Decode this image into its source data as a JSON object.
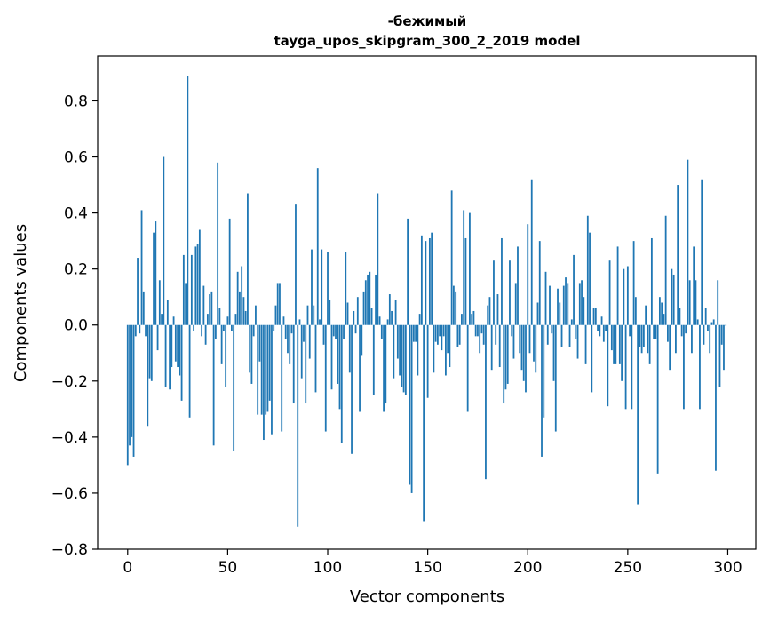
{
  "chart_data": {
    "type": "bar",
    "title": "-бежимый",
    "subtitle": "tayga_upos_skipgram_300_2_2019 model",
    "xlabel": "Vector components",
    "ylabel": "Components values",
    "xlim": [
      -15,
      314
    ],
    "ylim": [
      -0.8,
      0.96
    ],
    "xticks": [
      0,
      50,
      100,
      150,
      200,
      250,
      300
    ],
    "yticks": [
      -0.8,
      -0.6,
      -0.4,
      -0.2,
      0.0,
      0.2,
      0.4,
      0.6,
      0.8
    ],
    "ytick_labels": [
      "−0.8",
      "−0.6",
      "−0.4",
      "−0.2",
      "0.0",
      "0.2",
      "0.4",
      "0.6",
      "0.8"
    ],
    "bar_color": "#1f77b4",
    "grid": false,
    "x": "0..299 (component index)",
    "values": [
      -0.5,
      -0.43,
      -0.4,
      -0.47,
      -0.04,
      0.24,
      -0.03,
      0.41,
      0.12,
      -0.04,
      -0.36,
      -0.19,
      -0.2,
      0.33,
      0.37,
      -0.09,
      0.16,
      0.04,
      0.6,
      -0.22,
      0.09,
      -0.23,
      -0.15,
      0.03,
      -0.13,
      -0.15,
      -0.18,
      -0.27,
      0.25,
      0.15,
      0.89,
      -0.33,
      0.25,
      -0.02,
      0.28,
      0.29,
      0.34,
      -0.04,
      0.14,
      -0.07,
      0.04,
      0.11,
      0.12,
      -0.43,
      -0.05,
      0.58,
      0.06,
      -0.14,
      -0.02,
      -0.22,
      0.03,
      0.38,
      -0.02,
      -0.45,
      0.04,
      0.19,
      0.12,
      0.21,
      0.1,
      0.05,
      0.47,
      -0.17,
      -0.21,
      -0.04,
      0.07,
      -0.32,
      -0.13,
      -0.32,
      -0.41,
      -0.32,
      -0.31,
      -0.27,
      -0.39,
      -0.02,
      0.07,
      0.15,
      0.15,
      -0.38,
      0.03,
      -0.05,
      -0.1,
      -0.14,
      -0.03,
      -0.28,
      0.43,
      -0.72,
      0.02,
      -0.19,
      -0.06,
      -0.28,
      0.07,
      -0.12,
      0.27,
      0.07,
      -0.24,
      0.56,
      0.02,
      0.27,
      -0.07,
      -0.38,
      0.26,
      0.09,
      -0.23,
      -0.04,
      -0.05,
      -0.21,
      -0.3,
      -0.42,
      -0.05,
      0.26,
      0.08,
      -0.17,
      -0.46,
      0.05,
      -0.03,
      0.1,
      -0.31,
      -0.11,
      0.12,
      0.16,
      0.18,
      0.19,
      0.06,
      -0.25,
      0.18,
      0.47,
      0.03,
      -0.05,
      -0.31,
      -0.28,
      0.02,
      0.11,
      0.05,
      -0.19,
      0.09,
      -0.12,
      -0.18,
      -0.22,
      -0.24,
      -0.25,
      0.38,
      -0.57,
      -0.6,
      -0.06,
      -0.06,
      -0.18,
      0.04,
      0.32,
      -0.7,
      0.3,
      -0.26,
      0.31,
      0.33,
      -0.17,
      -0.06,
      -0.07,
      -0.04,
      -0.09,
      -0.04,
      -0.18,
      -0.1,
      -0.15,
      0.48,
      0.14,
      0.12,
      -0.08,
      -0.07,
      0.04,
      0.41,
      0.31,
      -0.31,
      0.4,
      0.04,
      0.05,
      -0.04,
      -0.04,
      -0.1,
      -0.03,
      -0.07,
      -0.55,
      0.07,
      0.1,
      -0.16,
      0.23,
      -0.07,
      0.11,
      -0.15,
      0.31,
      -0.28,
      -0.23,
      -0.21,
      0.23,
      -0.04,
      -0.12,
      0.15,
      0.28,
      -0.1,
      -0.16,
      -0.2,
      -0.24,
      0.36,
      -0.1,
      0.52,
      -0.13,
      -0.17,
      0.08,
      0.3,
      -0.47,
      -0.33,
      0.19,
      -0.07,
      0.14,
      -0.03,
      -0.2,
      -0.38,
      0.13,
      0.08,
      -0.08,
      0.14,
      0.17,
      0.15,
      -0.08,
      0.02,
      0.25,
      -0.05,
      -0.12,
      0.15,
      0.16,
      0.1,
      -0.14,
      0.39,
      0.33,
      -0.24,
      0.06,
      0.06,
      -0.02,
      -0.04,
      0.03,
      -0.06,
      -0.02,
      -0.29,
      0.23,
      -0.09,
      -0.14,
      -0.14,
      0.28,
      -0.14,
      -0.2,
      0.2,
      -0.3,
      0.21,
      -0.04,
      -0.3,
      0.3,
      0.1,
      -0.64,
      -0.08,
      -0.1,
      -0.08,
      0.07,
      -0.1,
      -0.14,
      0.31,
      -0.05,
      -0.05,
      -0.53,
      0.1,
      0.08,
      0.04,
      0.39,
      -0.06,
      -0.16,
      0.2,
      0.18,
      -0.1,
      0.5,
      0.06,
      -0.04,
      -0.3,
      -0.03,
      0.59,
      0.16,
      -0.1,
      0.28,
      0.16,
      0.02,
      -0.3,
      0.52,
      -0.07,
      0.06,
      -0.02,
      -0.1,
      0.01,
      0.02,
      -0.52,
      0.16,
      -0.22,
      -0.07,
      -0.16,
      0.0
    ]
  }
}
